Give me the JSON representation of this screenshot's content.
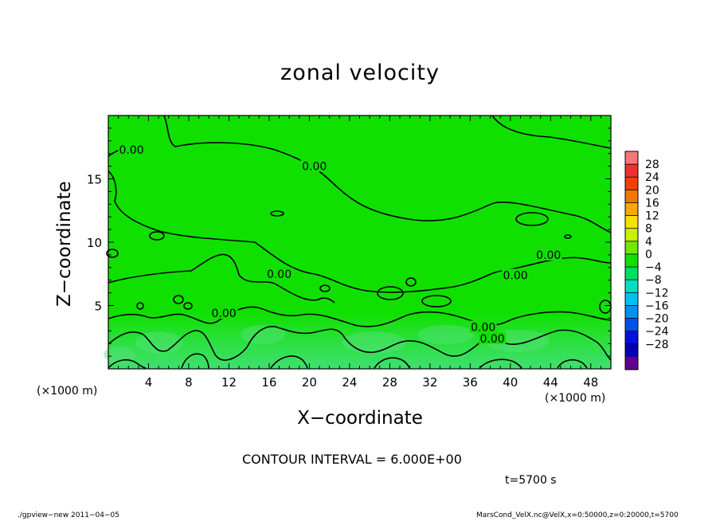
{
  "chart_data": {
    "type": "heatmap",
    "title": "zonal velocity",
    "xlabel": "X−coordinate",
    "ylabel": "Z−coordinate",
    "x_unit_label": "(×1000 m)",
    "x_ticks": [
      4,
      8,
      12,
      16,
      20,
      24,
      28,
      32,
      36,
      40,
      44,
      48
    ],
    "y_ticks": [
      5,
      10,
      15
    ],
    "xlim": [
      0,
      50
    ],
    "ylim": [
      0,
      20
    ],
    "contour_interval_label": "CONTOUR INTERVAL = 6.000E+00",
    "contour_labels": [
      {
        "text": "0.00",
        "x": 2.3,
        "y": 17.3
      },
      {
        "text": "0.00",
        "x": 20.5,
        "y": 16.0
      },
      {
        "text": "0.00",
        "x": 17.0,
        "y": 7.5
      },
      {
        "text": "0.00",
        "x": 43.8,
        "y": 9.0
      },
      {
        "text": "0.00",
        "x": 40.5,
        "y": 7.4
      },
      {
        "text": "0.00",
        "x": 11.5,
        "y": 4.4
      },
      {
        "text": "0.00",
        "x": 37.3,
        "y": 3.3
      },
      {
        "text": "0.00",
        "x": 38.2,
        "y": 2.4
      }
    ],
    "colorbar": {
      "levels": [
        "28",
        "24",
        "20",
        "16",
        "12",
        "8",
        "4",
        "0",
        "−4",
        "−8",
        "−12",
        "−16",
        "−20",
        "−24",
        "−28"
      ],
      "colors": [
        "#f87878",
        "#f03030",
        "#f04000",
        "#f07800",
        "#f8a800",
        "#f8e000",
        "#c8f000",
        "#70e800",
        "#10e000",
        "#00e060",
        "#00e0c0",
        "#00c0f0",
        "#0090f0",
        "#0050f0",
        "#0010e0",
        "#0000b8",
        "#600090"
      ]
    },
    "grid": false,
    "legend": "colorbar-right"
  },
  "annotations": {
    "time": "t=5700 s",
    "footer_left": "./gpview−new   2011−04−05",
    "footer_right": "MarsCond_VelX.nc@VelX,x=0:50000,z=0:20000,t=5700"
  },
  "colors": {
    "field_main": "#10e000",
    "field_low": "#30e050",
    "contour": "#000000"
  }
}
